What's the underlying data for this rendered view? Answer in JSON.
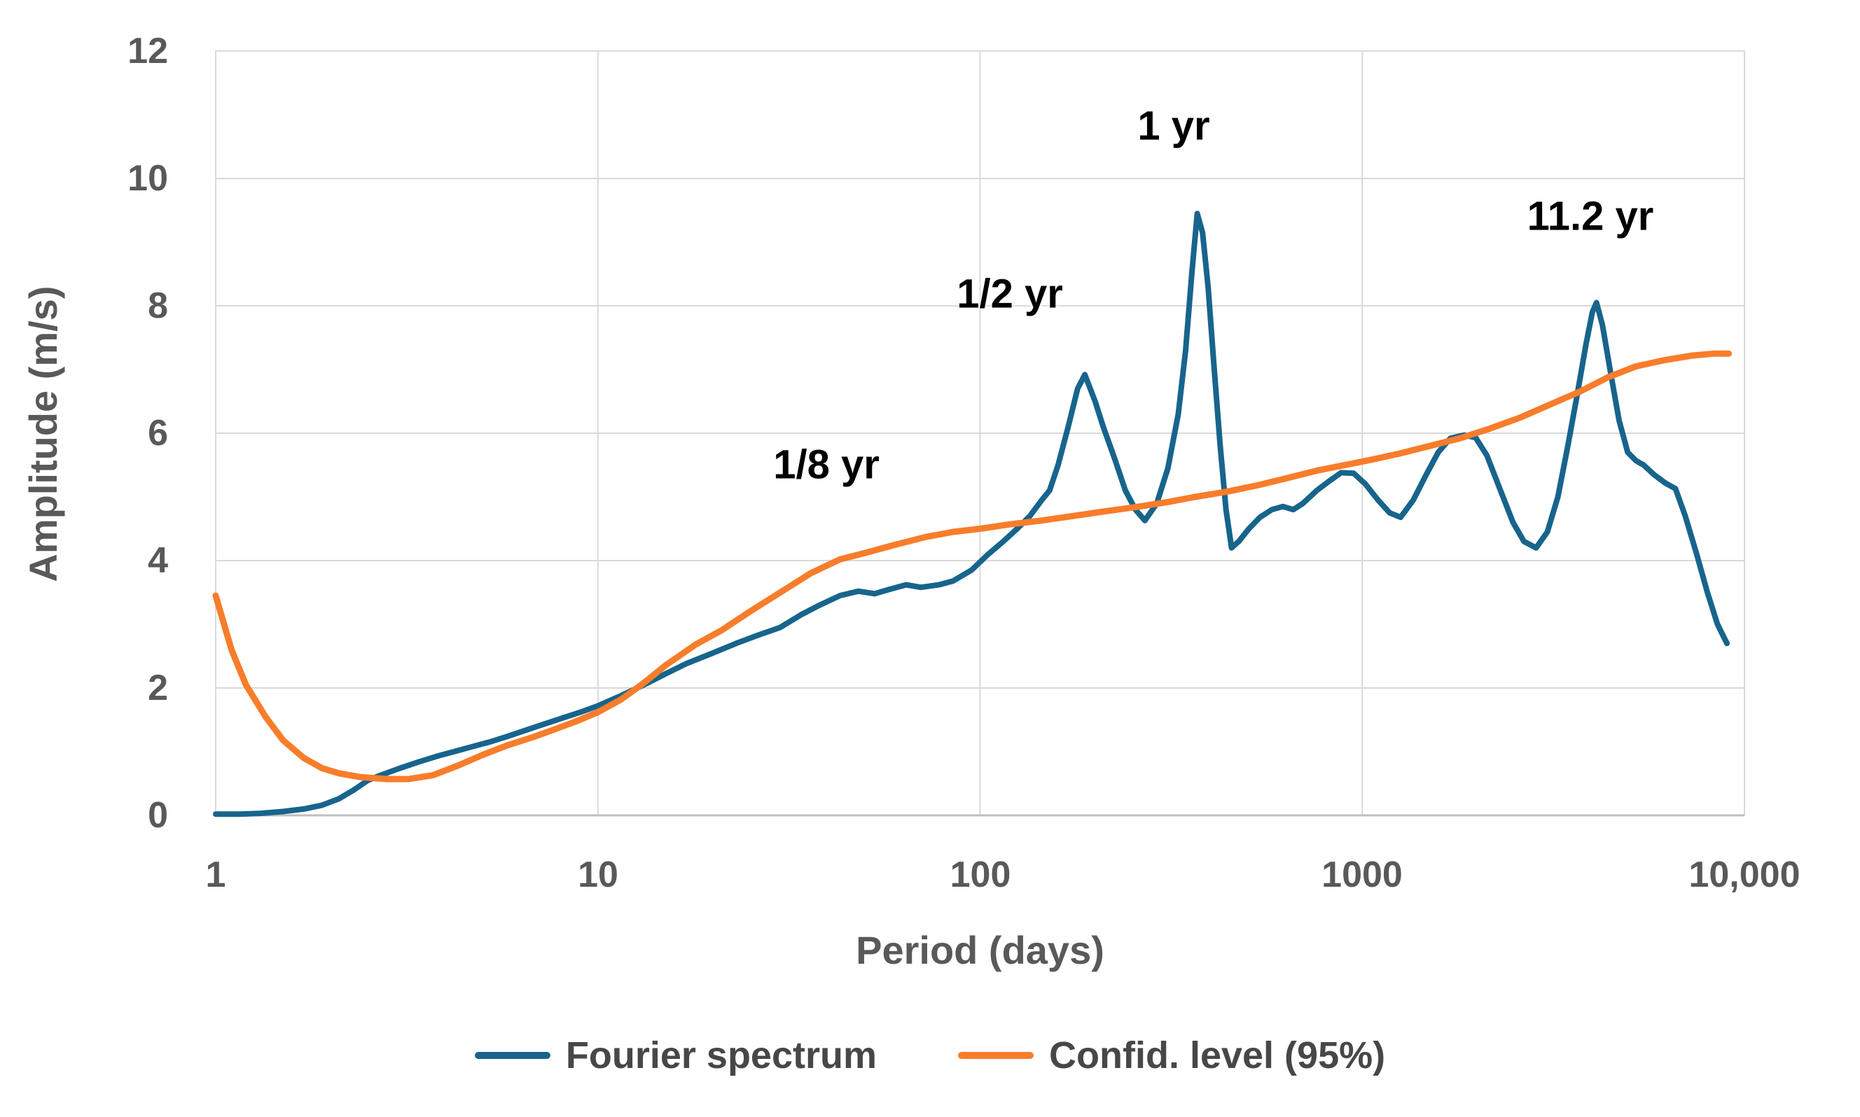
{
  "chart_data": {
    "type": "line",
    "title": "",
    "xlabel": "Period (days)",
    "ylabel": "Amplitude (m/s)",
    "x_scale": "log",
    "xlim": [
      1,
      10000
    ],
    "ylim": [
      0,
      12
    ],
    "grid": true,
    "legend_position": "bottom",
    "xticks": [
      "1",
      "10",
      "100",
      "1000",
      "10,000"
    ],
    "xtick_values": [
      1,
      10,
      100,
      1000,
      10000
    ],
    "yticks": [
      "0",
      "2",
      "4",
      "6",
      "8",
      "10",
      "12"
    ],
    "ytick_values": [
      0,
      2,
      4,
      6,
      8,
      10,
      12
    ],
    "grid_color": "#D9D9D9",
    "axis_line_color": "#BFBFBF",
    "annotations": [
      {
        "text": "1/8 yr",
        "period_days": 45.7,
        "amplitude": 5.5
      },
      {
        "text": "1/2 yr",
        "period_days": 182.6,
        "amplitude": 8.2
      },
      {
        "text": "1 yr",
        "period_days": 365,
        "amplitude": 10.8
      },
      {
        "text": "11.2 yr",
        "period_days": 4088,
        "amplitude": 9.4
      }
    ],
    "series": [
      {
        "name": "Fourier spectrum",
        "color": "#17648C",
        "points": [
          [
            1,
            0.02
          ],
          [
            1.15,
            0.02
          ],
          [
            1.3,
            0.03
          ],
          [
            1.5,
            0.06
          ],
          [
            1.7,
            0.1
          ],
          [
            1.9,
            0.16
          ],
          [
            2.1,
            0.26
          ],
          [
            2.3,
            0.4
          ],
          [
            2.5,
            0.55
          ],
          [
            2.7,
            0.63
          ],
          [
            3,
            0.73
          ],
          [
            3.4,
            0.84
          ],
          [
            3.8,
            0.93
          ],
          [
            4.2,
            1.0
          ],
          [
            4.7,
            1.08
          ],
          [
            5.2,
            1.15
          ],
          [
            5.8,
            1.24
          ],
          [
            6.5,
            1.34
          ],
          [
            7.2,
            1.43
          ],
          [
            8,
            1.52
          ],
          [
            9,
            1.62
          ],
          [
            10,
            1.72
          ],
          [
            11.5,
            1.88
          ],
          [
            13,
            2.03
          ],
          [
            15,
            2.22
          ],
          [
            17,
            2.38
          ],
          [
            20,
            2.55
          ],
          [
            23,
            2.7
          ],
          [
            26,
            2.82
          ],
          [
            30,
            2.95
          ],
          [
            34,
            3.15
          ],
          [
            38,
            3.3
          ],
          [
            43,
            3.45
          ],
          [
            48,
            3.52
          ],
          [
            53,
            3.48
          ],
          [
            58,
            3.55
          ],
          [
            64,
            3.62
          ],
          [
            70,
            3.58
          ],
          [
            78,
            3.62
          ],
          [
            85,
            3.68
          ],
          [
            95,
            3.85
          ],
          [
            105,
            4.1
          ],
          [
            115,
            4.3
          ],
          [
            125,
            4.5
          ],
          [
            135,
            4.7
          ],
          [
            145,
            4.95
          ],
          [
            152,
            5.1
          ],
          [
            160,
            5.5
          ],
          [
            170,
            6.1
          ],
          [
            180,
            6.7
          ],
          [
            188,
            6.92
          ],
          [
            200,
            6.5
          ],
          [
            210,
            6.1
          ],
          [
            225,
            5.6
          ],
          [
            240,
            5.1
          ],
          [
            255,
            4.8
          ],
          [
            270,
            4.63
          ],
          [
            290,
            4.9
          ],
          [
            310,
            5.45
          ],
          [
            330,
            6.3
          ],
          [
            345,
            7.3
          ],
          [
            358,
            8.5
          ],
          [
            370,
            9.45
          ],
          [
            382,
            9.15
          ],
          [
            395,
            8.3
          ],
          [
            410,
            7.0
          ],
          [
            425,
            5.8
          ],
          [
            440,
            4.8
          ],
          [
            455,
            4.2
          ],
          [
            475,
            4.3
          ],
          [
            505,
            4.5
          ],
          [
            540,
            4.68
          ],
          [
            580,
            4.8
          ],
          [
            620,
            4.85
          ],
          [
            660,
            4.8
          ],
          [
            700,
            4.9
          ],
          [
            760,
            5.1
          ],
          [
            820,
            5.25
          ],
          [
            880,
            5.38
          ],
          [
            950,
            5.37
          ],
          [
            1020,
            5.2
          ],
          [
            1100,
            4.95
          ],
          [
            1180,
            4.75
          ],
          [
            1260,
            4.68
          ],
          [
            1360,
            4.95
          ],
          [
            1470,
            5.35
          ],
          [
            1580,
            5.7
          ],
          [
            1700,
            5.92
          ],
          [
            1850,
            5.97
          ],
          [
            1980,
            5.93
          ],
          [
            2120,
            5.65
          ],
          [
            2300,
            5.1
          ],
          [
            2480,
            4.6
          ],
          [
            2650,
            4.3
          ],
          [
            2850,
            4.2
          ],
          [
            3050,
            4.45
          ],
          [
            3250,
            5.0
          ],
          [
            3450,
            5.8
          ],
          [
            3650,
            6.6
          ],
          [
            3850,
            7.4
          ],
          [
            4000,
            7.9
          ],
          [
            4100,
            8.05
          ],
          [
            4250,
            7.7
          ],
          [
            4450,
            7.0
          ],
          [
            4700,
            6.2
          ],
          [
            4950,
            5.7
          ],
          [
            5200,
            5.57
          ],
          [
            5450,
            5.5
          ],
          [
            5800,
            5.35
          ],
          [
            6200,
            5.22
          ],
          [
            6600,
            5.13
          ],
          [
            7000,
            4.7
          ],
          [
            7500,
            4.1
          ],
          [
            8000,
            3.5
          ],
          [
            8500,
            3.0
          ],
          [
            9000,
            2.7
          ]
        ]
      },
      {
        "name": "Confid. level (95%)",
        "color": "#F87D2B",
        "points": [
          [
            1,
            3.45
          ],
          [
            1.1,
            2.6
          ],
          [
            1.2,
            2.05
          ],
          [
            1.35,
            1.55
          ],
          [
            1.5,
            1.18
          ],
          [
            1.7,
            0.9
          ],
          [
            1.9,
            0.74
          ],
          [
            2.1,
            0.66
          ],
          [
            2.4,
            0.6
          ],
          [
            2.8,
            0.57
          ],
          [
            3.2,
            0.57
          ],
          [
            3.7,
            0.63
          ],
          [
            4.3,
            0.78
          ],
          [
            5,
            0.95
          ],
          [
            5.8,
            1.1
          ],
          [
            6.7,
            1.22
          ],
          [
            7.7,
            1.35
          ],
          [
            8.8,
            1.48
          ],
          [
            10,
            1.62
          ],
          [
            11.5,
            1.82
          ],
          [
            13,
            2.05
          ],
          [
            15,
            2.35
          ],
          [
            18,
            2.68
          ],
          [
            21,
            2.9
          ],
          [
            25,
            3.2
          ],
          [
            30,
            3.5
          ],
          [
            36,
            3.8
          ],
          [
            43,
            4.02
          ],
          [
            50,
            4.12
          ],
          [
            60,
            4.25
          ],
          [
            72,
            4.37
          ],
          [
            85,
            4.45
          ],
          [
            100,
            4.5
          ],
          [
            120,
            4.57
          ],
          [
            145,
            4.63
          ],
          [
            175,
            4.7
          ],
          [
            210,
            4.77
          ],
          [
            255,
            4.84
          ],
          [
            310,
            4.92
          ],
          [
            365,
            5.0
          ],
          [
            440,
            5.08
          ],
          [
            530,
            5.18
          ],
          [
            640,
            5.3
          ],
          [
            770,
            5.42
          ],
          [
            900,
            5.5
          ],
          [
            1050,
            5.58
          ],
          [
            1250,
            5.68
          ],
          [
            1500,
            5.8
          ],
          [
            1800,
            5.92
          ],
          [
            2150,
            6.07
          ],
          [
            2600,
            6.25
          ],
          [
            3100,
            6.45
          ],
          [
            3700,
            6.65
          ],
          [
            4400,
            6.88
          ],
          [
            5200,
            7.05
          ],
          [
            6200,
            7.15
          ],
          [
            7300,
            7.22
          ],
          [
            8300,
            7.25
          ],
          [
            9100,
            7.25
          ]
        ]
      }
    ],
    "legend": [
      {
        "label": "Fourier spectrum",
        "color": "#17648C"
      },
      {
        "label": "Confid. level (95%)",
        "color": "#F87D2B"
      }
    ]
  }
}
